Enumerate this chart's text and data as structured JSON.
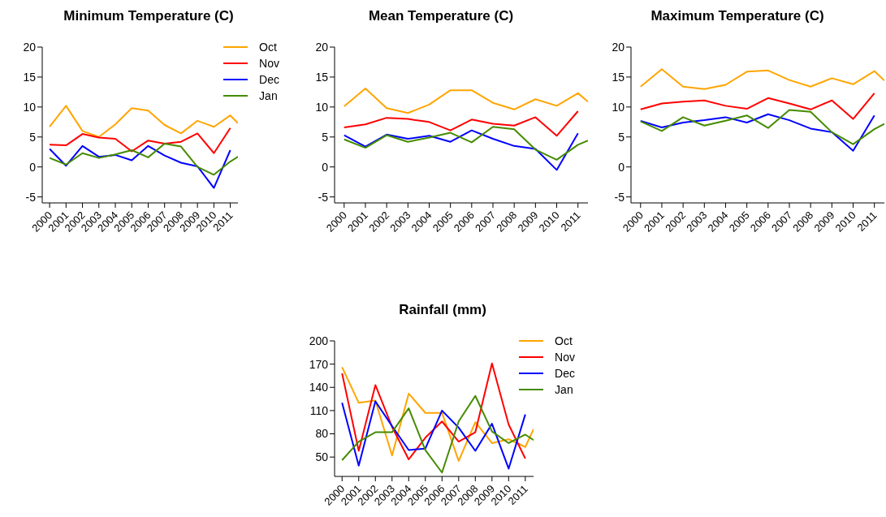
{
  "chart_data": [
    {
      "type": "line",
      "title": "Minimum Temperature (C)",
      "xlim": [
        1999.55,
        2011.47
      ],
      "xticks": [
        2000,
        2001,
        2002,
        2003,
        2004,
        2005,
        2006,
        2007,
        2008,
        2009,
        2010,
        2011
      ],
      "ylim": [
        -6,
        20
      ],
      "yticks": [
        -5,
        0,
        5,
        10,
        15,
        20
      ],
      "grid": false,
      "legend": "top right",
      "marker": "none",
      "line_style": "solid",
      "series": [
        {
          "name": "Oct",
          "color": "#ffa500",
          "x": [
            2000,
            2001,
            2002,
            2003,
            2004,
            2005,
            2006,
            2007,
            2008,
            2009,
            2010,
            2011,
            2011.47
          ],
          "values": [
            6.7,
            10.2,
            6.0,
            5.0,
            7.1,
            9.8,
            9.4,
            7.0,
            5.6,
            7.7,
            6.7,
            8.6,
            7.3
          ]
        },
        {
          "name": "Nov",
          "color": "#ff0000",
          "x": [
            2000,
            2001,
            2002,
            2003,
            2004,
            2005,
            2006,
            2007,
            2008,
            2009,
            2010,
            2011
          ],
          "values": [
            3.7,
            3.6,
            5.5,
            4.9,
            4.7,
            2.6,
            4.4,
            3.9,
            4.2,
            5.6,
            2.3,
            6.5
          ]
        },
        {
          "name": "Dec",
          "color": "#0000ff",
          "x": [
            2000,
            2001,
            2002,
            2003,
            2004,
            2005,
            2006,
            2007,
            2008,
            2009,
            2010,
            2011
          ],
          "values": [
            3.0,
            0.2,
            3.5,
            1.7,
            2.0,
            1.1,
            3.5,
            1.9,
            0.7,
            0.1,
            -3.5,
            2.8
          ]
        },
        {
          "name": "Jan",
          "color": "#458b00",
          "x": [
            2000,
            2001,
            2002,
            2003,
            2004,
            2005,
            2006,
            2007,
            2008,
            2009,
            2010,
            2011,
            2011.47
          ],
          "values": [
            1.5,
            0.4,
            2.3,
            1.5,
            2.1,
            2.8,
            1.6,
            3.9,
            3.4,
            0,
            -1.3,
            0.9,
            1.7
          ]
        }
      ]
    },
    {
      "type": "line",
      "title": "Mean Temperature (C)",
      "xlim": [
        1999.55,
        2011.47
      ],
      "xticks": [
        2000,
        2001,
        2002,
        2003,
        2004,
        2005,
        2006,
        2007,
        2008,
        2009,
        2010,
        2011
      ],
      "ylim": [
        -6,
        20
      ],
      "yticks": [
        -5,
        0,
        5,
        10,
        15,
        20
      ],
      "grid": false,
      "legend": false,
      "marker": "none",
      "line_style": "solid",
      "series": [
        {
          "color": "#ffa500",
          "x": [
            2000,
            2001,
            2002,
            2003,
            2004,
            2005,
            2006,
            2007,
            2008,
            2009,
            2010,
            2011,
            2011.47
          ],
          "values": [
            10.1,
            13.1,
            9.8,
            9.0,
            10.4,
            12.8,
            12.8,
            10.7,
            9.6,
            11.3,
            10.2,
            12.3,
            10.9
          ]
        },
        {
          "color": "#ff0000",
          "x": [
            2000,
            2001,
            2002,
            2003,
            2004,
            2005,
            2006,
            2007,
            2008,
            2009,
            2010,
            2011
          ],
          "values": [
            6.6,
            7.1,
            8.2,
            8.0,
            7.5,
            6.1,
            7.9,
            7.2,
            6.9,
            8.3,
            5.2,
            9.3
          ]
        },
        {
          "color": "#0000ff",
          "x": [
            2000,
            2001,
            2002,
            2003,
            2004,
            2005,
            2006,
            2007,
            2008,
            2009,
            2010,
            2011
          ],
          "values": [
            5.3,
            3.4,
            5.4,
            4.7,
            5.2,
            4.2,
            6.1,
            4.7,
            3.5,
            3.0,
            -0.5,
            5.6
          ]
        },
        {
          "color": "#458b00",
          "x": [
            2000,
            2001,
            2002,
            2003,
            2004,
            2005,
            2006,
            2007,
            2008,
            2009,
            2010,
            2011,
            2011.47
          ],
          "values": [
            4.6,
            3.2,
            5.3,
            4.2,
            4.9,
            5.7,
            4.1,
            6.7,
            6.3,
            2.9,
            1.2,
            3.7,
            4.4
          ]
        }
      ]
    },
    {
      "type": "line",
      "title": "Maximum Temperature (C)",
      "xlim": [
        1999.55,
        2011.47
      ],
      "xticks": [
        2000,
        2001,
        2002,
        2003,
        2004,
        2005,
        2006,
        2007,
        2008,
        2009,
        2010,
        2011
      ],
      "ylim": [
        -6,
        20
      ],
      "yticks": [
        -5,
        0,
        5,
        10,
        15,
        20
      ],
      "grid": false,
      "legend": false,
      "marker": "none",
      "line_style": "solid",
      "series": [
        {
          "color": "#ffa500",
          "x": [
            2000,
            2001,
            2002,
            2003,
            2004,
            2005,
            2006,
            2007,
            2008,
            2009,
            2010,
            2011,
            2011.47
          ],
          "values": [
            13.4,
            16.3,
            13.4,
            13.0,
            13.7,
            15.9,
            16.1,
            14.5,
            13.4,
            14.8,
            13.8,
            16.0,
            14.4
          ]
        },
        {
          "color": "#ff0000",
          "x": [
            2000,
            2001,
            2002,
            2003,
            2004,
            2005,
            2006,
            2007,
            2008,
            2009,
            2010,
            2011
          ],
          "values": [
            9.6,
            10.6,
            10.9,
            11.1,
            10.2,
            9.7,
            11.5,
            10.6,
            9.6,
            11.1,
            8.0,
            12.3
          ]
        },
        {
          "color": "#0000ff",
          "x": [
            2000,
            2001,
            2002,
            2003,
            2004,
            2005,
            2006,
            2007,
            2008,
            2009,
            2010,
            2011
          ],
          "values": [
            7.7,
            6.6,
            7.4,
            7.8,
            8.3,
            7.4,
            8.8,
            7.8,
            6.4,
            5.8,
            2.7,
            8.6
          ]
        },
        {
          "color": "#458b00",
          "x": [
            2000,
            2001,
            2002,
            2003,
            2004,
            2005,
            2006,
            2007,
            2008,
            2009,
            2010,
            2011,
            2011.47
          ],
          "values": [
            7.6,
            6.0,
            8.3,
            6.9,
            7.7,
            8.6,
            6.5,
            9.5,
            9.2,
            5.8,
            3.8,
            6.3,
            7.2
          ]
        }
      ]
    },
    {
      "type": "line",
      "title": "Rainfall (mm)",
      "xlim": [
        1999.55,
        2011.5
      ],
      "xticks": [
        2000,
        2001,
        2002,
        2003,
        2004,
        2005,
        2006,
        2007,
        2008,
        2009,
        2010,
        2011
      ],
      "ylim": [
        25,
        200
      ],
      "yticks": [
        50,
        80,
        110,
        140,
        170,
        200
      ],
      "grid": false,
      "legend": "top right",
      "marker": "none",
      "line_style": "solid",
      "series": [
        {
          "name": "Oct",
          "color": "#ffa500",
          "x": [
            2000,
            2001,
            2002,
            2003,
            2004,
            2005,
            2006,
            2007,
            2008,
            2009,
            2010,
            2011,
            2011.5
          ],
          "values": [
            166,
            120,
            123,
            52,
            132,
            107,
            107,
            45,
            95,
            68,
            73,
            63,
            86
          ]
        },
        {
          "name": "Nov",
          "color": "#ff0000",
          "x": [
            2000,
            2001,
            2002,
            2003,
            2004,
            2005,
            2006,
            2007,
            2008,
            2009,
            2010,
            2011
          ],
          "values": [
            158,
            58,
            143,
            89,
            47,
            75,
            96,
            70,
            82,
            171,
            92,
            48
          ]
        },
        {
          "name": "Dec",
          "color": "#0000ff",
          "x": [
            2000,
            2001,
            2002,
            2003,
            2004,
            2005,
            2006,
            2007,
            2008,
            2009,
            2010,
            2011
          ],
          "values": [
            120,
            39,
            122,
            90,
            59,
            61,
            110,
            88,
            58,
            93,
            35,
            105
          ]
        },
        {
          "name": "Jan",
          "color": "#458b00",
          "x": [
            2000,
            2001,
            2002,
            2003,
            2004,
            2005,
            2006,
            2007,
            2008,
            2009,
            2010,
            2011,
            2011.5
          ],
          "values": [
            46,
            70,
            82,
            82,
            113,
            59,
            30,
            96,
            129,
            83,
            68,
            79,
            72
          ]
        }
      ]
    }
  ]
}
